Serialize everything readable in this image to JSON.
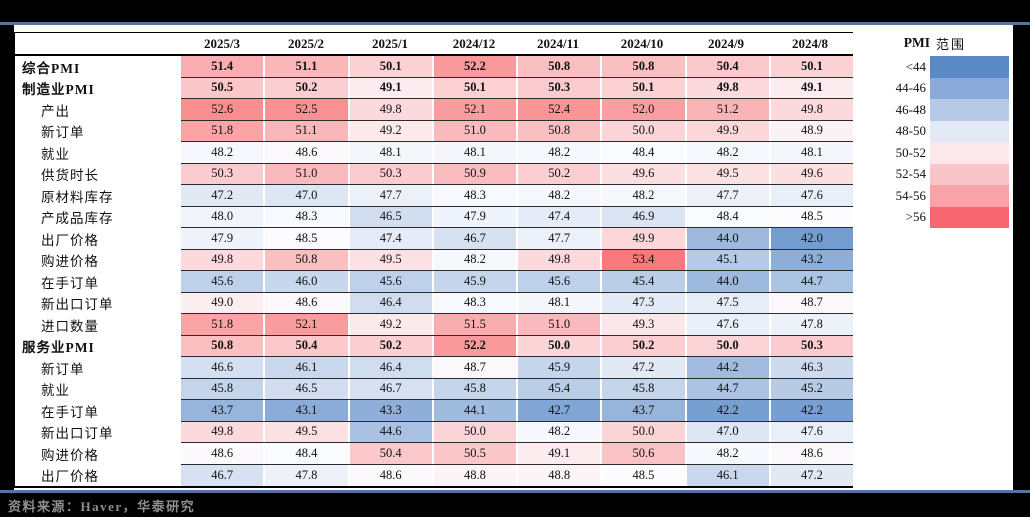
{
  "chart_data": {
    "type": "heatmap",
    "columns": [
      "2025/3",
      "2025/2",
      "2025/1",
      "2024/12",
      "2024/11",
      "2024/10",
      "2024/9",
      "2024/8"
    ],
    "rows": [
      {
        "label": "综合PMI",
        "bold": true,
        "values": [
          51.4,
          51.1,
          50.1,
          52.2,
          50.8,
          50.8,
          50.4,
          50.1
        ]
      },
      {
        "label": "制造业PMI",
        "bold": true,
        "values": [
          50.5,
          50.2,
          49.1,
          50.1,
          50.3,
          50.1,
          49.8,
          49.1
        ]
      },
      {
        "label": "产出",
        "indent": true,
        "values": [
          52.6,
          52.5,
          49.8,
          52.1,
          52.4,
          52.0,
          51.2,
          49.8
        ]
      },
      {
        "label": "新订单",
        "indent": true,
        "values": [
          51.8,
          51.1,
          49.2,
          51.0,
          50.8,
          50.0,
          49.9,
          48.9
        ]
      },
      {
        "label": "就业",
        "indent": true,
        "values": [
          48.2,
          48.6,
          48.1,
          48.1,
          48.2,
          48.4,
          48.2,
          48.1
        ]
      },
      {
        "label": "供货时长",
        "indent": true,
        "values": [
          50.3,
          51.0,
          50.3,
          50.9,
          50.2,
          49.6,
          49.5,
          49.6
        ]
      },
      {
        "label": "原材料库存",
        "indent": true,
        "values": [
          47.2,
          47.0,
          47.7,
          48.3,
          48.2,
          48.2,
          47.7,
          47.6
        ]
      },
      {
        "label": "产成品库存",
        "indent": true,
        "values": [
          48.0,
          48.3,
          46.5,
          47.9,
          47.4,
          46.9,
          48.4,
          48.5
        ]
      },
      {
        "label": "出厂价格",
        "indent": true,
        "values": [
          47.9,
          48.5,
          47.4,
          46.7,
          47.7,
          49.9,
          44.0,
          42.0
        ]
      },
      {
        "label": "购进价格",
        "indent": true,
        "values": [
          49.8,
          50.8,
          49.5,
          48.2,
          49.8,
          53.4,
          45.1,
          43.2
        ]
      },
      {
        "label": "在手订单",
        "indent": true,
        "values": [
          45.6,
          46.0,
          45.6,
          45.9,
          45.6,
          45.4,
          44.0,
          44.7
        ]
      },
      {
        "label": "新出口订单",
        "indent": true,
        "values": [
          49.0,
          48.6,
          46.4,
          48.3,
          48.1,
          47.3,
          47.5,
          48.7
        ]
      },
      {
        "label": "进口数量",
        "indent": true,
        "values": [
          51.8,
          52.1,
          49.2,
          51.5,
          51.0,
          49.3,
          47.6,
          47.8
        ]
      },
      {
        "label": "服务业PMI",
        "bold": true,
        "values": [
          50.8,
          50.4,
          50.2,
          52.2,
          50.0,
          50.2,
          50.0,
          50.3
        ]
      },
      {
        "label": "新订单",
        "indent": true,
        "values": [
          46.6,
          46.1,
          46.4,
          48.7,
          45.9,
          47.2,
          44.2,
          46.3
        ]
      },
      {
        "label": "就业",
        "indent": true,
        "values": [
          45.8,
          46.5,
          46.7,
          45.8,
          45.4,
          45.8,
          44.7,
          45.2
        ]
      },
      {
        "label": "在手订单",
        "indent": true,
        "values": [
          43.7,
          43.1,
          43.3,
          44.1,
          42.7,
          43.7,
          42.2,
          42.2
        ]
      },
      {
        "label": "新出口订单",
        "indent": true,
        "values": [
          49.8,
          49.5,
          44.6,
          50.0,
          48.2,
          50.0,
          47.0,
          47.6
        ]
      },
      {
        "label": "购进价格",
        "indent": true,
        "values": [
          48.6,
          48.4,
          50.4,
          50.5,
          49.1,
          50.6,
          48.2,
          48.6
        ]
      },
      {
        "label": "出厂价格",
        "indent": true,
        "values": [
          46.7,
          47.8,
          48.6,
          48.8,
          48.8,
          48.5,
          46.1,
          47.2
        ]
      }
    ],
    "color_scale": {
      "min_value": 40.8,
      "mid_value": 48.5,
      "max_value": 54.0,
      "low_color": "#5A8AC6",
      "mid_color": "#FCFCFF",
      "high_color": "#F8696B"
    }
  },
  "legend": {
    "title_pmi": "PMI",
    "title_range": "范围",
    "entries": [
      {
        "label": "<44",
        "color": "#5b89c5"
      },
      {
        "label": "44-46",
        "color": "#89aad9"
      },
      {
        "label": "46-48",
        "color": "#b6cae7"
      },
      {
        "label": "48-50",
        "color": "#e3e9f5"
      },
      {
        "label": "50-52",
        "color": "#fce8ea"
      },
      {
        "label": "52-54",
        "color": "#fac5c9"
      },
      {
        "label": "54-56",
        "color": "#f9a2a8"
      },
      {
        "label": ">56",
        "color": "#f7676f"
      }
    ]
  },
  "source_note": "资料来源：Haver，华泰研究",
  "colors": {
    "divider_line": "#54749e",
    "source_text": "#8e8e8e",
    "panel_background": "#ffffff",
    "page_background": "#000000"
  }
}
